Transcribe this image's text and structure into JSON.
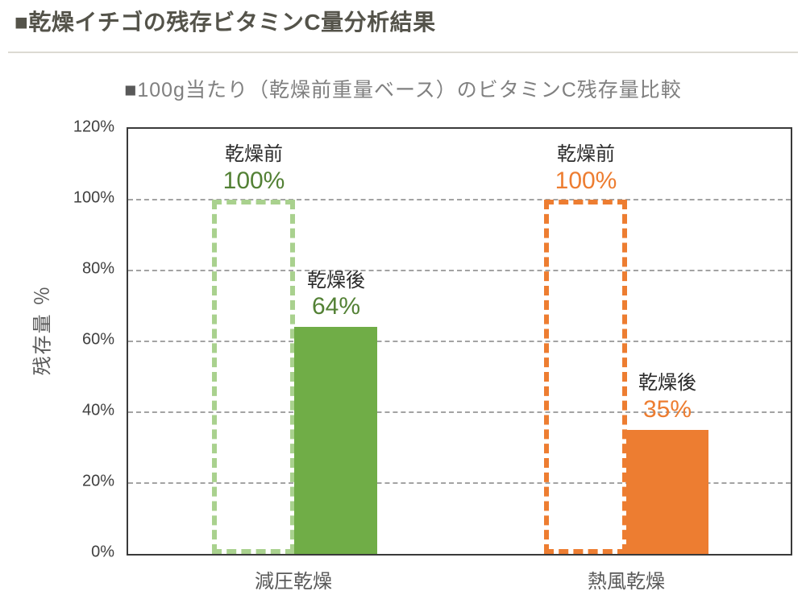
{
  "page": {
    "header_title": "■乾燥イチゴの残存ビタミンC量分析結果"
  },
  "chart_data": {
    "type": "bar",
    "title": "■100g当たり（乾燥前重量ベース）のビタミンC残存量比較",
    "ylabel": "残存量 ％",
    "xlabel": "",
    "ylim": [
      0,
      120
    ],
    "yticks": [
      0,
      20,
      40,
      60,
      80,
      100,
      120
    ],
    "ytick_suffix": "%",
    "grid": "horizontal-dashed",
    "legend_position": "none",
    "categories": [
      "減圧乾燥",
      "熱風乾燥"
    ],
    "groups": [
      {
        "category": "減圧乾燥",
        "before": {
          "label": "乾燥前",
          "value": 100,
          "value_text": "100%",
          "bar_style": "dashed-outline",
          "outline_color": "#A9D18E",
          "text_color": "#538135"
        },
        "after": {
          "label": "乾燥後",
          "value": 64,
          "value_text": "64%",
          "bar_style": "solid-fill",
          "fill_color": "#70AD47",
          "text_color": "#538135"
        }
      },
      {
        "category": "熱風乾燥",
        "before": {
          "label": "乾燥前",
          "value": 100,
          "value_text": "100%",
          "bar_style": "dashed-outline",
          "outline_color": "#ED7D31",
          "text_color": "#ED7D31"
        },
        "after": {
          "label": "乾燥後",
          "value": 35,
          "value_text": "35%",
          "bar_style": "solid-fill",
          "fill_color": "#ED7D31",
          "text_color": "#ED7D31"
        }
      }
    ],
    "colors": {
      "green_solid": "#70AD47",
      "green_light": "#A9D18E",
      "green_text": "#538135",
      "orange": "#ED7D31",
      "gridline": "#A3A3A3",
      "plot_border": "#3A3A3A"
    }
  }
}
